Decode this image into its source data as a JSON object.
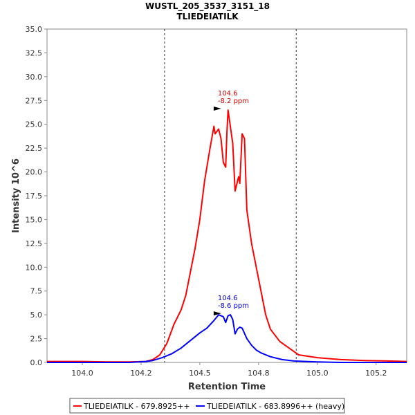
{
  "chart_data": {
    "type": "line",
    "title": "WUSTL_205_3537_3151_18",
    "subtitle": "TLIEDEIATILK",
    "xlabel": "Retention Time",
    "ylabel": "Intensity 10^6",
    "xlim": [
      103.85,
      105.38
    ],
    "ylim": [
      0,
      35
    ],
    "xticks": [
      "104.0",
      "104.2",
      "104.5",
      "104.8",
      "105.0",
      "105.2"
    ],
    "xtick_values": [
      104.0,
      104.25,
      104.5,
      104.75,
      105.0,
      105.25
    ],
    "yticks": [
      "0.0",
      "2.5",
      "5.0",
      "7.5",
      "10.0",
      "12.5",
      "15.0",
      "17.5",
      "20.0",
      "22.5",
      "25.0",
      "27.5",
      "30.0",
      "32.5",
      "35.0"
    ],
    "ytick_values": [
      0,
      2.5,
      5,
      7.5,
      10,
      12.5,
      15,
      17.5,
      20,
      22.5,
      25,
      27.5,
      30,
      32.5,
      35
    ],
    "integration_bounds": [
      104.35,
      104.91
    ],
    "series": [
      {
        "name": "TLIEDEIATILK - 679.8925++",
        "color": "#ff0000",
        "x": [
          103.85,
          104.0,
          104.1,
          104.2,
          104.27,
          104.3,
          104.33,
          104.36,
          104.39,
          104.42,
          104.44,
          104.46,
          104.48,
          104.5,
          104.52,
          104.54,
          104.56,
          104.565,
          104.58,
          104.59,
          104.6,
          104.61,
          104.615,
          104.62,
          104.64,
          104.65,
          104.66,
          104.665,
          104.67,
          104.68,
          104.69,
          104.7,
          104.72,
          104.74,
          104.76,
          104.78,
          104.8,
          104.84,
          104.88,
          104.92,
          105.0,
          105.1,
          105.2,
          105.3,
          105.38
        ],
        "y": [
          0.1,
          0.1,
          0.05,
          0.05,
          0.1,
          0.3,
          0.8,
          2.0,
          4.0,
          5.5,
          7.0,
          9.5,
          12.0,
          15.0,
          19.0,
          22.0,
          24.8,
          24.0,
          24.5,
          23.5,
          21.0,
          20.5,
          24.0,
          26.5,
          23.0,
          18.0,
          19.0,
          19.5,
          18.8,
          24.0,
          23.5,
          16.0,
          12.5,
          10.0,
          7.5,
          5.0,
          3.5,
          2.2,
          1.5,
          0.8,
          0.5,
          0.3,
          0.2,
          0.15,
          0.1
        ]
      },
      {
        "name": "TLIEDEIATILK - 683.8996++ (heavy)",
        "color": "#0000ff",
        "x": [
          103.85,
          104.0,
          104.1,
          104.2,
          104.27,
          104.3,
          104.34,
          104.38,
          104.42,
          104.46,
          104.5,
          104.53,
          104.56,
          104.58,
          104.6,
          104.61,
          104.62,
          104.63,
          104.64,
          104.65,
          104.66,
          104.67,
          104.68,
          104.7,
          104.72,
          104.74,
          104.76,
          104.8,
          104.85,
          104.9,
          104.95,
          105.0,
          105.1,
          105.2,
          105.3,
          105.38
        ],
        "y": [
          0.0,
          0.0,
          0.0,
          0.0,
          0.1,
          0.2,
          0.5,
          0.9,
          1.5,
          2.3,
          3.1,
          3.6,
          4.4,
          5.0,
          4.8,
          4.2,
          4.9,
          5.0,
          4.5,
          3.0,
          3.5,
          3.7,
          3.6,
          2.5,
          1.8,
          1.3,
          1.0,
          0.6,
          0.3,
          0.15,
          0.1,
          0.05,
          0.0,
          0.0,
          0.0,
          0.0
        ]
      }
    ],
    "annotations": [
      {
        "series": 0,
        "x": 104.6,
        "y": 26.5,
        "lines": [
          "104.6",
          "-8.2 ppm"
        ],
        "color": "#cc0000"
      },
      {
        "series": 1,
        "x": 104.6,
        "y": 5.0,
        "lines": [
          "104.6",
          "-8.6 ppm"
        ],
        "color": "#0000cc"
      }
    ],
    "legend": {
      "placement": "bottom",
      "items": [
        "TLIEDEIATILK - 679.8925++",
        "TLIEDEIATILK - 683.8996++ (heavy)"
      ]
    }
  }
}
